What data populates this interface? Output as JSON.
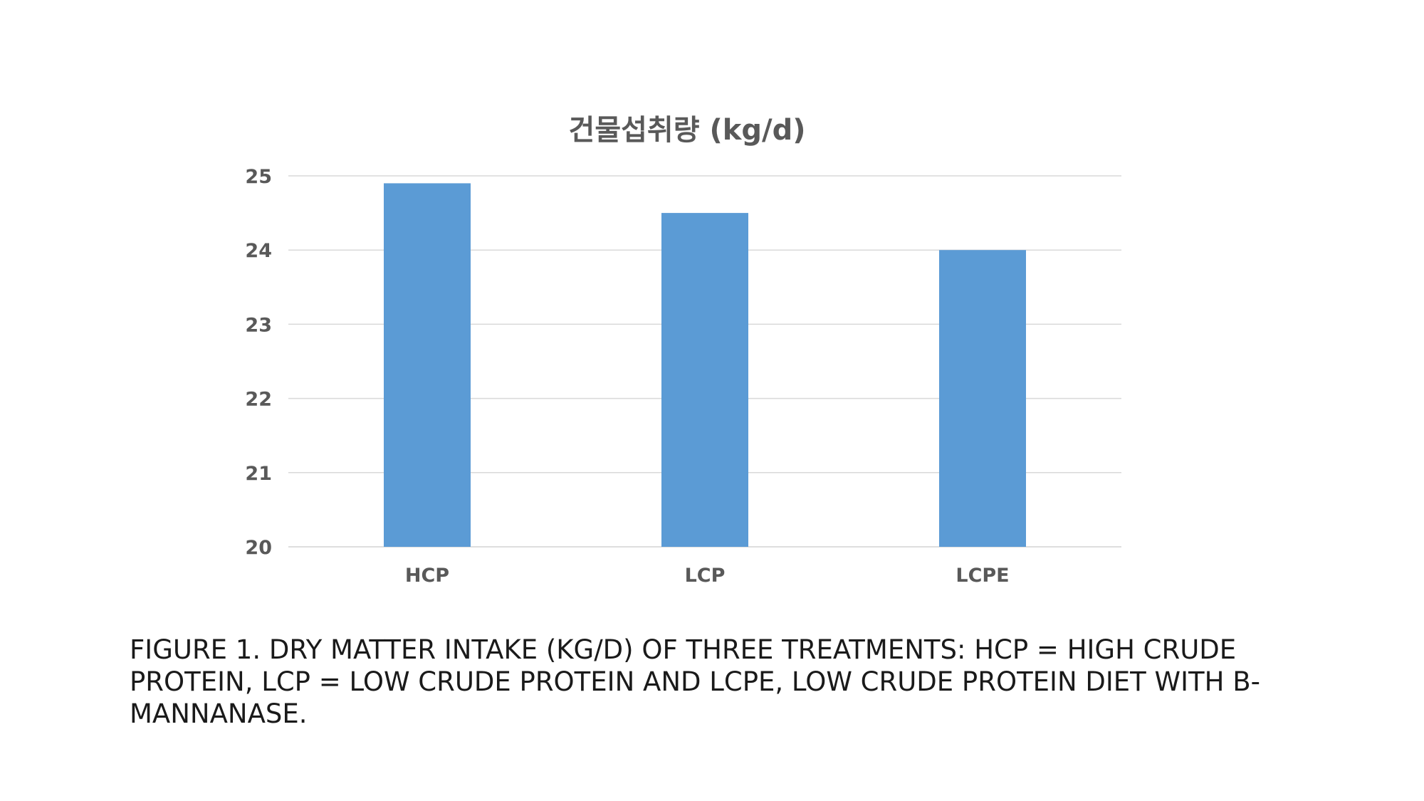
{
  "chart_data": {
    "type": "bar",
    "title": "건물섭취량 (kg/d)",
    "categories": [
      "HCP",
      "LCP",
      "LCPE"
    ],
    "values": [
      24.9,
      24.5,
      24.0
    ],
    "xlabel": "",
    "ylabel": "",
    "ylim": [
      20,
      25
    ],
    "yticks": [
      20,
      21,
      22,
      23,
      24,
      25
    ],
    "grid": true,
    "legend": "none",
    "bar_color": "#5B9BD5",
    "grid_color": "#D9D9D9",
    "tick_label_color": "#595959"
  },
  "caption": "FIGURE 1. DRY MATTER INTAKE (KG/D) OF THREE TREATMENTS: HCP = HIGH CRUDE PROTEIN, LCP = LOW CRUDE PROTEIN AND LCPE, LOW CRUDE PROTEIN DIET WITH Β-MANNANASE."
}
